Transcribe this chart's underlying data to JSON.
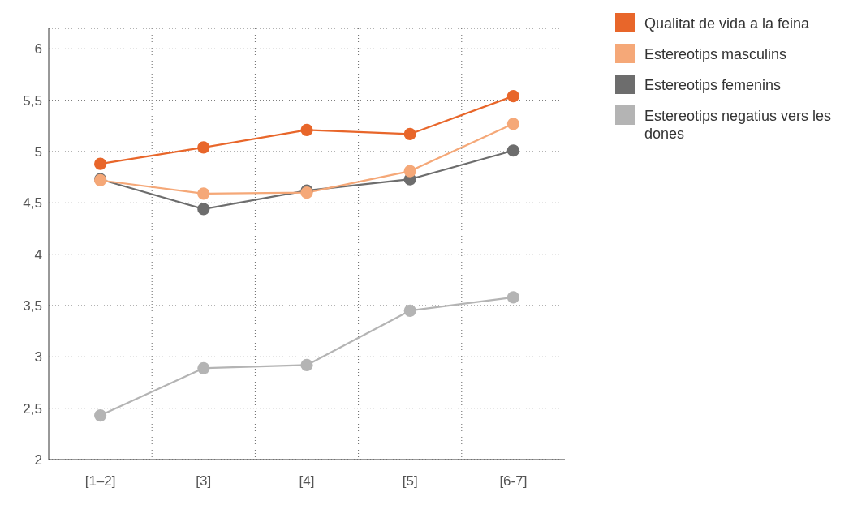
{
  "chart_data": {
    "type": "line",
    "categories": [
      "[1–2]",
      "[3]",
      "[4]",
      "[5]",
      "[6-7]"
    ],
    "series": [
      {
        "name": "Qualitat de vida a la feina",
        "color": "#e8662a",
        "values": [
          4.88,
          5.04,
          5.21,
          5.17,
          5.54
        ]
      },
      {
        "name": "Estereotips masculins",
        "color": "#f5a878",
        "values": [
          4.72,
          4.59,
          4.6,
          4.81,
          5.27
        ]
      },
      {
        "name": "Estereotips femenins",
        "color": "#6d6d6d",
        "values": [
          4.73,
          4.44,
          4.62,
          4.73,
          5.01
        ]
      },
      {
        "name": "Estereotips negatius vers les dones",
        "color": "#b4b4b4",
        "values": [
          2.43,
          2.89,
          2.92,
          3.45,
          3.58
        ]
      }
    ],
    "ylim": [
      2,
      6.2
    ],
    "yticks": [
      2,
      {
        "value": 2.5,
        "label": "2,5"
      },
      3,
      {
        "value": 3.5,
        "label": "3,5"
      },
      4,
      {
        "value": 4.5,
        "label": "4,5"
      },
      5,
      {
        "value": 5.5,
        "label": "5,5"
      },
      6
    ],
    "grid": true,
    "legend": "top right",
    "marker": "circle",
    "line_style": "solid"
  }
}
